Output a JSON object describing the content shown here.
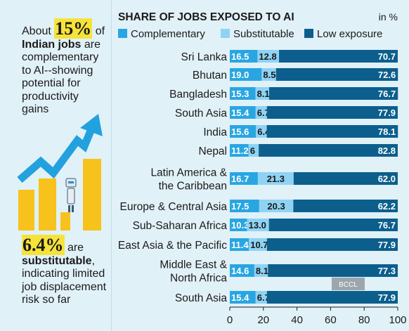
{
  "sidebar": {
    "blurb1": {
      "pre": "About ",
      "pct": "15%",
      "post1": " of ",
      "bold2": "Indian jobs",
      "post2": " are complementary to AI--showing potential for productivity gains"
    },
    "blurb2": {
      "pct": "6.4%",
      "post1": " are ",
      "bold2": "substitutable",
      "post2": ", indicating limited job displacement risk so far"
    }
  },
  "watermark": "BCCL",
  "colors": {
    "complementary": "#29a6e2",
    "substitutable": "#8fd3f4",
    "low_exposure": "#0c5f8d",
    "highlight": "#f6e33a",
    "bar_yellow": "#f7c21b",
    "arrow": "#23a1de"
  },
  "chart_data": {
    "type": "bar",
    "orientation": "horizontal",
    "stacked": true,
    "title": "SHARE OF JOBS EXPOSED TO AI",
    "unit": "in %",
    "categories": [
      [
        "Sri Lanka"
      ],
      [
        "Bhutan"
      ],
      [
        "Bangladesh"
      ],
      [
        "South Asia"
      ],
      [
        "India"
      ],
      [
        "Nepal"
      ],
      [
        "Latin America &",
        "the Caribbean"
      ],
      [
        "Europe & Central Asia"
      ],
      [
        "Sub-Saharan Africa"
      ],
      [
        "East Asia & the Pacific"
      ],
      [
        "Middle East &",
        "North Africa"
      ],
      [
        "South Asia"
      ]
    ],
    "series": [
      {
        "name": "Complementary",
        "values": [
          16.5,
          19.0,
          15.3,
          15.4,
          15.6,
          11.2,
          16.7,
          17.5,
          10.3,
          11.4,
          14.6,
          15.4
        ],
        "labels": [
          "16.5",
          "19.0",
          "15.3",
          "15.4",
          "15.6",
          "11.2",
          "16.7",
          "17.5",
          "10.3",
          "11.4",
          "14.6",
          "15.4"
        ]
      },
      {
        "name": "Substitutable",
        "values": [
          12.8,
          8.5,
          8.1,
          6.7,
          6.4,
          6,
          21.3,
          20.3,
          13.0,
          10.7,
          8.1,
          6.7
        ],
        "labels": [
          "12.8",
          "8.5",
          "8.1",
          "6.7",
          "6.4",
          "6",
          "21.3",
          "20.3",
          "13.0",
          "10.7",
          "8.1",
          "6.7"
        ]
      },
      {
        "name": "Low exposure",
        "values": [
          70.7,
          72.6,
          76.7,
          77.9,
          78.1,
          82.8,
          62.0,
          62.2,
          76.7,
          77.9,
          77.3,
          77.9
        ],
        "labels": [
          "70.7",
          "72.6",
          "76.7",
          "77.9",
          "78.1",
          "82.8",
          "62.0",
          "62.2",
          "76.7",
          "77.9",
          "77.3",
          "77.9"
        ]
      }
    ],
    "xlim": [
      0,
      100
    ],
    "xticks": [
      "0",
      "20",
      "40",
      "60",
      "80",
      "100"
    ],
    "legend_position": "top"
  }
}
